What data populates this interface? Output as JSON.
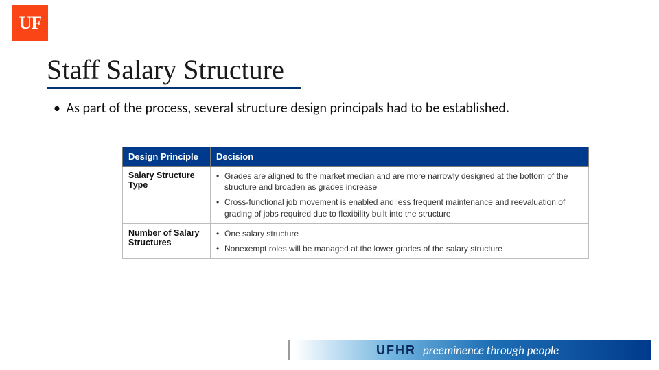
{
  "logo": {
    "text": "UF",
    "bg": "#fa4616",
    "fg": "#ffffff"
  },
  "title": {
    "text": "Staff Salary Structure",
    "underline_color": "#003471",
    "fontsize_pt": 40
  },
  "body": {
    "bullet": "As part of the process, several structure design principals had to be established.",
    "bullet_fontsize_pt": 20
  },
  "dp_table": {
    "type": "table",
    "header_bg": "#003a8c",
    "header_fg": "#ffffff",
    "border_color": "#bcbcbc",
    "cell_fontsize_pt": 12,
    "header_fontsize_pt": 13,
    "columns": [
      "Design Principle",
      "Decision"
    ],
    "rows": [
      {
        "label": "Salary Structure Type",
        "decisions": [
          "Grades are aligned to the market median and are more narrowly designed at the bottom of the structure and broaden as grades increase",
          "Cross-functional job movement is enabled and less frequent maintenance and reevaluation of grading of jobs required due to flexibility built into the structure"
        ]
      },
      {
        "label": "Number of Salary Structures",
        "decisions": [
          "One salary structure",
          "Nonexempt roles will be managed at the lower grades of the salary structure"
        ]
      }
    ]
  },
  "footer": {
    "brand": "UFHR",
    "tagline": "preeminence through people",
    "gradient_from": "#ffffff",
    "gradient_mid1": "#6fb3e0",
    "gradient_mid2": "#1e6fb5",
    "gradient_to": "#003a8c",
    "brand_color": "#0a2a5a",
    "tagline_color": "#ffffff"
  }
}
